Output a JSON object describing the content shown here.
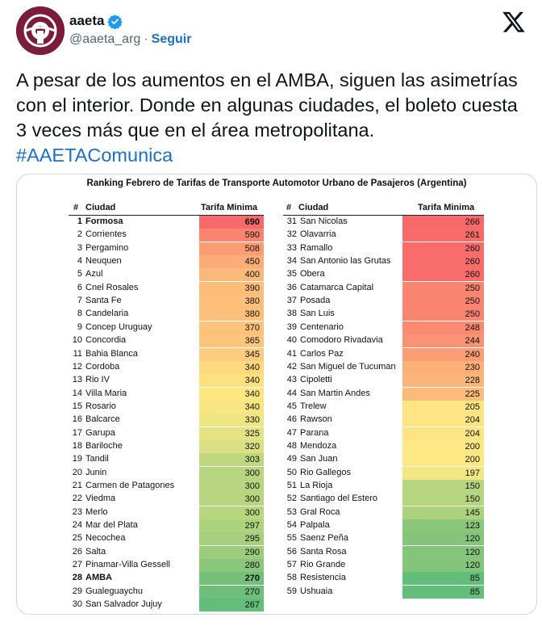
{
  "account": {
    "display_name": "aaeta",
    "handle": "@aaeta_arg",
    "separator": "·",
    "follow_label": "Seguir"
  },
  "tweet": {
    "text": "A pesar de los aumentos en el AMBA, siguen las asimetrías con el interior. Donde en algunas ciudades, el boleto cuesta 3 veces más que en el área metropolitana.",
    "hashtag": "#AAETAComunica"
  },
  "ranking": {
    "title": "Ranking Febrero de Tarifas de Transporte Automotor Urbano de Pasajeros (Argentina)",
    "col_hash": "#",
    "col_city": "Ciudad",
    "col_fare": "Tarifa Minima",
    "left": [
      {
        "n": "1",
        "city": "Formosa",
        "fare": "690",
        "bold": true,
        "color": "#f8696b"
      },
      {
        "n": "2",
        "city": "Corrientes",
        "fare": "590",
        "color": "#f98570"
      },
      {
        "n": "3",
        "city": "Pergamino",
        "fare": "508",
        "color": "#fa9c74"
      },
      {
        "n": "4",
        "city": "Neuquen",
        "fare": "450",
        "color": "#fbac77"
      },
      {
        "n": "5",
        "city": "Azul",
        "fare": "400",
        "color": "#fcba7a"
      },
      {
        "n": "6",
        "city": "Cnel Rosales",
        "fare": "390",
        "color": "#fcbd7b"
      },
      {
        "n": "7",
        "city": "Santa Fe",
        "fare": "380",
        "color": "#fcc07b"
      },
      {
        "n": "8",
        "city": "Candelaria",
        "fare": "380",
        "color": "#fcc07b"
      },
      {
        "n": "9",
        "city": "Concep Uruguay",
        "fare": "370",
        "color": "#fdc37c"
      },
      {
        "n": "10",
        "city": "Concordia",
        "fare": "365",
        "color": "#fdc57d"
      },
      {
        "n": "11",
        "city": "Bahia Blanca",
        "fare": "345",
        "color": "#fdcc7e"
      },
      {
        "n": "12",
        "city": "Cordoba",
        "fare": "340",
        "color": "#fed97f"
      },
      {
        "n": "13",
        "city": "Rio IV",
        "fare": "340",
        "color": "#fee17f"
      },
      {
        "n": "14",
        "city": "Villa Maria",
        "fare": "340",
        "color": "#fee680"
      },
      {
        "n": "15",
        "city": "Rosario",
        "fare": "340",
        "color": "#f7e682"
      },
      {
        "n": "16",
        "city": "Balcarce",
        "fare": "330",
        "color": "#eee583"
      },
      {
        "n": "17",
        "city": "Garupa",
        "fare": "325",
        "color": "#e5e283"
      },
      {
        "n": "18",
        "city": "Bariloche",
        "fare": "320",
        "color": "#dbe084"
      },
      {
        "n": "19",
        "city": "Tandil",
        "fare": "303",
        "color": "#bfd880"
      },
      {
        "n": "20",
        "city": "Junin",
        "fare": "300",
        "color": "#b8d67f"
      },
      {
        "n": "21",
        "city": "Carmen de Patagones",
        "fare": "300",
        "color": "#b8d67f"
      },
      {
        "n": "22",
        "city": "Viedma",
        "fare": "300",
        "color": "#b8d67f"
      },
      {
        "n": "23",
        "city": "Merlo",
        "fare": "300",
        "color": "#b8d67f"
      },
      {
        "n": "24",
        "city": "Mar del Plata",
        "fare": "297",
        "color": "#add37e"
      },
      {
        "n": "25",
        "city": "Necochea",
        "fare": "295",
        "color": "#a6d07d"
      },
      {
        "n": "26",
        "city": "Salta",
        "fare": "290",
        "color": "#9dcc7c"
      },
      {
        "n": "27",
        "city": "Pinamar-Villa Gessell",
        "fare": "280",
        "color": "#8ac77b"
      },
      {
        "n": "28",
        "city": "AMBA",
        "fare": "270",
        "bold": true,
        "color": "#74c07a"
      },
      {
        "n": "29",
        "city": "Gualeguaychu",
        "fare": "270",
        "color": "#6dbf79"
      },
      {
        "n": "30",
        "city": "San Salvador Jujuy",
        "fare": "267",
        "color": "#63be7b"
      }
    ],
    "right": [
      {
        "n": "31",
        "city": "San Nicolas",
        "fare": "266",
        "color": "#f8696b"
      },
      {
        "n": "32",
        "city": "Olavarria",
        "fare": "261",
        "color": "#f86b6b"
      },
      {
        "n": "33",
        "city": "Ramallo",
        "fare": "260",
        "color": "#f86c6b"
      },
      {
        "n": "34",
        "city": "San Antonio las Grutas",
        "fare": "260",
        "color": "#f86c6b"
      },
      {
        "n": "35",
        "city": "Obera",
        "fare": "260",
        "color": "#f86c6b"
      },
      {
        "n": "36",
        "city": "Catamarca Capital",
        "fare": "250",
        "color": "#f9846f"
      },
      {
        "n": "37",
        "city": "Posada",
        "fare": "250",
        "color": "#f9846f"
      },
      {
        "n": "38",
        "city": "San Luis",
        "fare": "250",
        "color": "#f9846f"
      },
      {
        "n": "39",
        "city": "Centenario",
        "fare": "248",
        "color": "#fa8a71"
      },
      {
        "n": "40",
        "city": "Comodoro Rivadavia",
        "fare": "244",
        "color": "#fa9373"
      },
      {
        "n": "41",
        "city": "Carlos Paz",
        "fare": "240",
        "color": "#fa9c74"
      },
      {
        "n": "42",
        "city": "San Miguel de Tucuman",
        "fare": "230",
        "color": "#fbb078"
      },
      {
        "n": "43",
        "city": "Cipoletti",
        "fare": "228",
        "color": "#fbb479"
      },
      {
        "n": "44",
        "city": "San Martin Andes",
        "fare": "225",
        "color": "#fcbb7a"
      },
      {
        "n": "45",
        "city": "Trelew",
        "fare": "205",
        "color": "#fee482"
      },
      {
        "n": "46",
        "city": "Rawson",
        "fare": "204",
        "color": "#fee482"
      },
      {
        "n": "47",
        "city": "Parana",
        "fare": "204",
        "color": "#fee482"
      },
      {
        "n": "48",
        "city": "Mendoza",
        "fare": "200",
        "color": "#fde883"
      },
      {
        "n": "49",
        "city": "San Juan",
        "fare": "200",
        "color": "#fde883"
      },
      {
        "n": "50",
        "city": "Rio Gallegos",
        "fare": "197",
        "color": "#f2e783"
      },
      {
        "n": "51",
        "city": "La Rioja",
        "fare": "150",
        "color": "#b6d57f"
      },
      {
        "n": "52",
        "city": "Santiago del Estero",
        "fare": "150",
        "color": "#b6d57f"
      },
      {
        "n": "53",
        "city": "Gral Roca",
        "fare": "145",
        "color": "#acd27e"
      },
      {
        "n": "54",
        "city": "Palpala",
        "fare": "123",
        "color": "#8ac77b"
      },
      {
        "n": "55",
        "city": "Saenz Peña",
        "fare": "120",
        "color": "#84c57b"
      },
      {
        "n": "56",
        "city": "Santa Rosa",
        "fare": "120",
        "color": "#84c57b"
      },
      {
        "n": "57",
        "city": "Rio Grande",
        "fare": "120",
        "color": "#84c57b"
      },
      {
        "n": "58",
        "city": "Resistencia",
        "fare": "85",
        "color": "#63be7b"
      },
      {
        "n": "59",
        "city": "Ushuaia",
        "fare": "85",
        "color": "#63be7b"
      }
    ]
  }
}
